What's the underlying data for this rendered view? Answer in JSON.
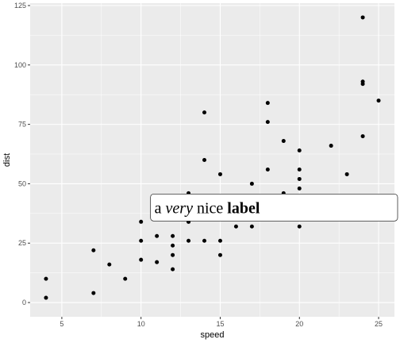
{
  "colors": {
    "panel_background": "#ebebeb",
    "grid_major": "#ffffff",
    "point": "#000000",
    "label_fill": "#ffffff",
    "label_border": "#333333"
  },
  "chart_data": {
    "type": "scatter",
    "title": "",
    "xlabel": "speed",
    "ylabel": "dist",
    "xlim": [
      3.0,
      26.0
    ],
    "ylim": [
      -6,
      126
    ],
    "x_ticks": [
      5,
      10,
      15,
      20,
      25
    ],
    "y_ticks": [
      0,
      25,
      50,
      75,
      100,
      125
    ],
    "grid": true,
    "legend": "none",
    "points": [
      {
        "x": 4,
        "y": 2
      },
      {
        "x": 4,
        "y": 10
      },
      {
        "x": 7,
        "y": 4
      },
      {
        "x": 7,
        "y": 22
      },
      {
        "x": 8,
        "y": 16
      },
      {
        "x": 9,
        "y": 10
      },
      {
        "x": 10,
        "y": 18
      },
      {
        "x": 10,
        "y": 26
      },
      {
        "x": 10,
        "y": 34
      },
      {
        "x": 11,
        "y": 17
      },
      {
        "x": 11,
        "y": 28
      },
      {
        "x": 12,
        "y": 14
      },
      {
        "x": 12,
        "y": 20
      },
      {
        "x": 12,
        "y": 24
      },
      {
        "x": 12,
        "y": 28
      },
      {
        "x": 13,
        "y": 26
      },
      {
        "x": 13,
        "y": 34
      },
      {
        "x": 13,
        "y": 34
      },
      {
        "x": 13,
        "y": 46
      },
      {
        "x": 14,
        "y": 26
      },
      {
        "x": 14,
        "y": 36
      },
      {
        "x": 14,
        "y": 60
      },
      {
        "x": 14,
        "y": 80
      },
      {
        "x": 15,
        "y": 20
      },
      {
        "x": 15,
        "y": 26
      },
      {
        "x": 15,
        "y": 54
      },
      {
        "x": 16,
        "y": 32
      },
      {
        "x": 16,
        "y": 40
      },
      {
        "x": 17,
        "y": 32
      },
      {
        "x": 17,
        "y": 40
      },
      {
        "x": 17,
        "y": 50
      },
      {
        "x": 18,
        "y": 42
      },
      {
        "x": 18,
        "y": 56
      },
      {
        "x": 18,
        "y": 76
      },
      {
        "x": 18,
        "y": 84
      },
      {
        "x": 19,
        "y": 36
      },
      {
        "x": 19,
        "y": 46
      },
      {
        "x": 19,
        "y": 68
      },
      {
        "x": 20,
        "y": 32
      },
      {
        "x": 20,
        "y": 48
      },
      {
        "x": 20,
        "y": 52
      },
      {
        "x": 20,
        "y": 56
      },
      {
        "x": 20,
        "y": 64
      },
      {
        "x": 22,
        "y": 66
      },
      {
        "x": 23,
        "y": 54
      },
      {
        "x": 24,
        "y": 70
      },
      {
        "x": 24,
        "y": 92
      },
      {
        "x": 24,
        "y": 93
      },
      {
        "x": 24,
        "y": 120
      },
      {
        "x": 25,
        "y": 85
      }
    ],
    "annotation": {
      "x": 11,
      "y": 40,
      "parts": [
        {
          "text": "a ",
          "style": "normal"
        },
        {
          "text": "very",
          "style": "italic"
        },
        {
          "text": " nice ",
          "style": "normal"
        },
        {
          "text": "label",
          "style": "bold"
        }
      ]
    }
  }
}
